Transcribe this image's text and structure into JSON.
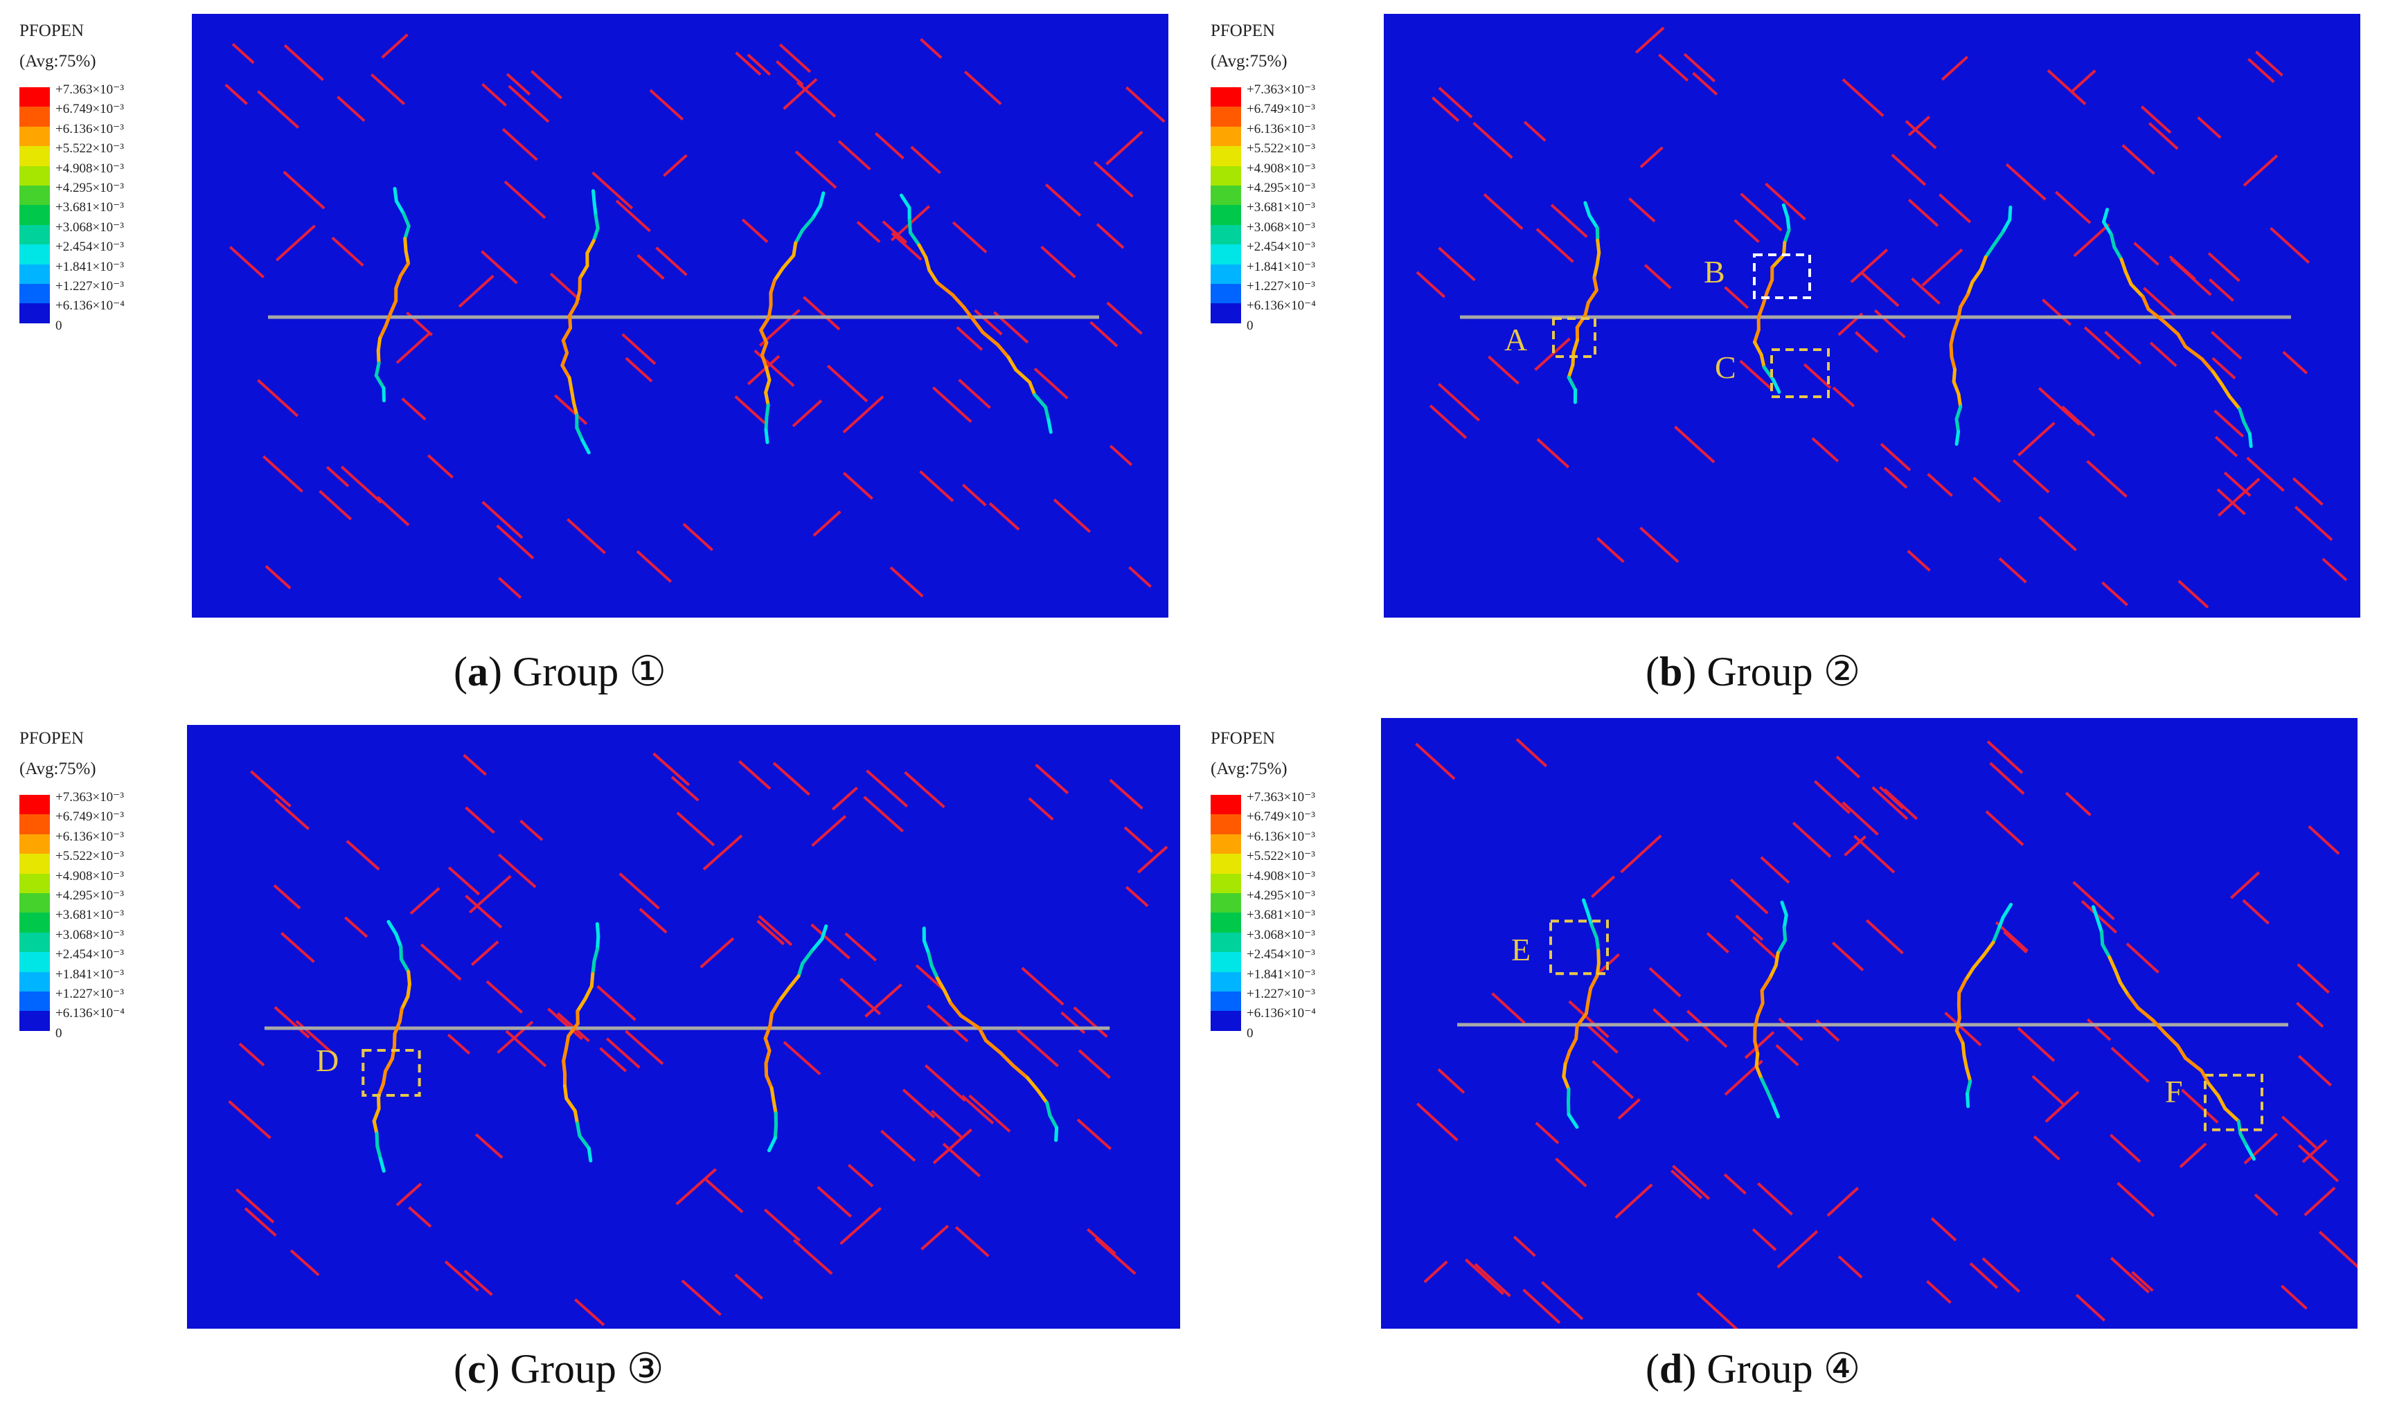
{
  "legend": {
    "title": "PFOPEN",
    "subtitle": "(Avg:75%)",
    "labels": [
      "+7.363×10⁻³",
      "+6.749×10⁻³",
      "+6.136×10⁻³",
      "+5.522×10⁻³",
      "+4.908×10⁻³",
      "+4.295×10⁻³",
      "+3.681×10⁻³",
      "+3.068×10⁻³",
      "+2.454×10⁻³",
      "+1.841×10⁻³",
      "+1.227×10⁻³",
      "+6.136×10⁻⁴",
      "0"
    ],
    "colors": [
      "#ff0000",
      "#ff5a00",
      "#ffa500",
      "#e6e600",
      "#a6e600",
      "#45d22d",
      "#00c84b",
      "#00d29b",
      "#00e6e6",
      "#00b4ff",
      "#0064ff",
      "#0a10d6"
    ]
  },
  "colors": {
    "background": "#0a10d6",
    "fracture": "#e5203c",
    "axis_line": "#a8a8a8",
    "box": "#e8c84a",
    "box_b": "#ffffff"
  },
  "panels": [
    {
      "letter": "a",
      "group": "Group",
      "number": "①",
      "boxes": []
    },
    {
      "letter": "b",
      "group": "Group",
      "number": "②",
      "boxes": [
        "A",
        "B",
        "C"
      ]
    },
    {
      "letter": "c",
      "group": "Group",
      "number": "③",
      "boxes": [
        "D"
      ]
    },
    {
      "letter": "d",
      "group": "Group",
      "number": "④",
      "boxes": [
        "E",
        "F"
      ]
    }
  ]
}
